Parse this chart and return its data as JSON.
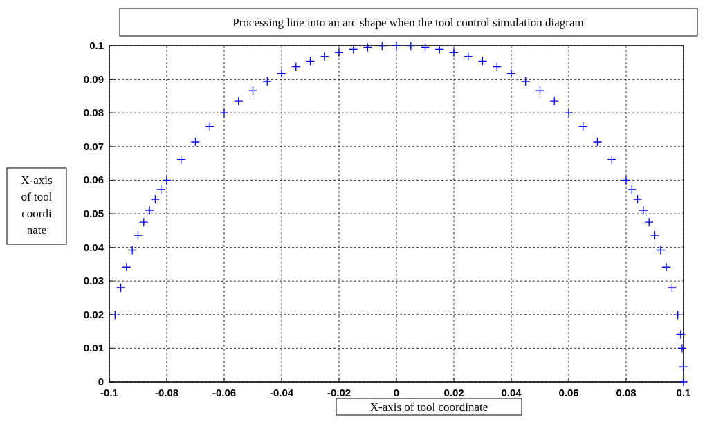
{
  "chart_data": {
    "type": "scatter",
    "title": "Processing line into an arc shape when the tool control simulation diagram",
    "xlabel": "X-axis of tool coordinate",
    "ylabel": "X-axis of tool coordinate",
    "x": [
      -0.098,
      -0.096,
      -0.094,
      -0.092,
      -0.09,
      -0.088,
      -0.086,
      -0.084,
      -0.082,
      -0.08,
      -0.075,
      -0.07,
      -0.065,
      -0.06,
      -0.055,
      -0.05,
      -0.045,
      -0.04,
      -0.035,
      -0.03,
      -0.025,
      -0.02,
      -0.015,
      -0.01,
      -0.005,
      0,
      0.005,
      0.01,
      0.015,
      0.02,
      0.025,
      0.03,
      0.035,
      0.04,
      0.045,
      0.05,
      0.055,
      0.06,
      0.065,
      0.07,
      0.075,
      0.08,
      0.082,
      0.084,
      0.086,
      0.088,
      0.09,
      0.092,
      0.094,
      0.096,
      0.098,
      0.099,
      0.0995,
      0.0999,
      0.1
    ],
    "series": [
      {
        "color": "#0000ff",
        "values": [
          0.0199,
          0.028,
          0.0341,
          0.0392,
          0.0436,
          0.0475,
          0.051,
          0.0543,
          0.0572,
          0.06,
          0.0661,
          0.0714,
          0.076,
          0.08,
          0.0835,
          0.0866,
          0.0893,
          0.0917,
          0.0937,
          0.0954,
          0.0968,
          0.098,
          0.0989,
          0.0995,
          0.0999,
          0.1,
          0.0999,
          0.0995,
          0.0989,
          0.098,
          0.0968,
          0.0954,
          0.0937,
          0.0917,
          0.0893,
          0.0866,
          0.0835,
          0.08,
          0.076,
          0.0714,
          0.0661,
          0.06,
          0.0572,
          0.0543,
          0.051,
          0.0475,
          0.0436,
          0.0392,
          0.0341,
          0.028,
          0.0199,
          0.0141,
          0.01,
          0.0045,
          0
        ]
      }
    ],
    "xlim": [
      -0.1,
      0.1
    ],
    "xticks": [
      -0.1,
      -0.08,
      -0.06,
      -0.04,
      -0.02,
      0,
      0.02,
      0.04,
      0.06,
      0.08,
      0.1
    ],
    "ylim": [
      0,
      0.1
    ],
    "yticks": [
      0,
      0.01,
      0.02,
      0.03,
      0.04,
      0.05,
      0.06,
      0.07,
      0.08,
      0.09,
      0.1
    ],
    "grid": true,
    "marker": "cross"
  }
}
